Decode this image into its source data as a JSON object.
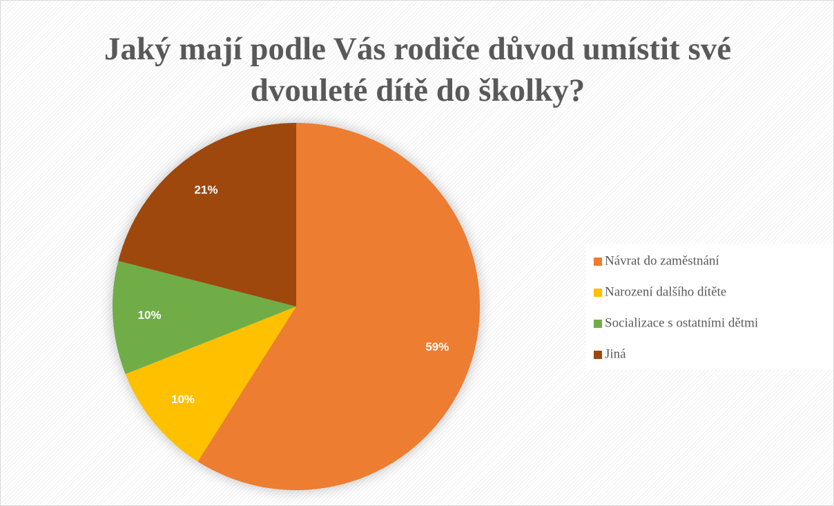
{
  "chart_data": {
    "type": "pie",
    "title": "Jaký mají podle Vás rodiče důvod umístit své dvouleté dítě do školky?",
    "categories": [
      "Návrat do zaměstnání",
      "Narození dalšího dítěte",
      "Socializace s ostatními dětmi",
      "Jiná"
    ],
    "values": [
      59,
      10,
      10,
      21
    ],
    "value_labels": [
      "59%",
      "10%",
      "10%",
      "21%"
    ],
    "colors": [
      "#ED7D31",
      "#FFC000",
      "#70AD47",
      "#9E480E"
    ],
    "legend": "right"
  }
}
